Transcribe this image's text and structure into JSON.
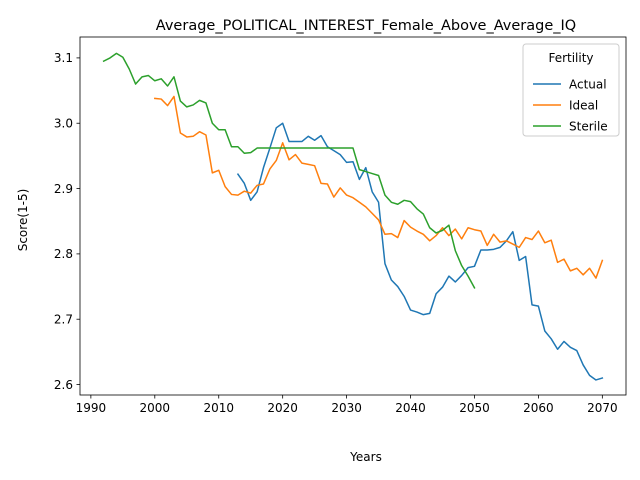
{
  "chart_data": {
    "type": "line",
    "title": "Average_POLITICAL_INTEREST_Female_Above_Average_IQ",
    "xlabel": "Years",
    "ylabel": "Score(1-5)",
    "xlim": [
      1988.3,
      2073.7
    ],
    "ylim": [
      2.584,
      3.132
    ],
    "xticks": [
      1990,
      2000,
      2010,
      2020,
      2030,
      2040,
      2050,
      2060,
      2070
    ],
    "yticks": [
      2.6,
      2.7,
      2.8,
      2.9,
      3.0,
      3.1
    ],
    "ytick_labels": [
      "2.6",
      "2.7",
      "2.8",
      "2.9",
      "3.0",
      "3.1"
    ],
    "grid": false,
    "legend": {
      "title": "Fertility",
      "placement": "top-right"
    },
    "series": [
      {
        "name": "Actual",
        "color": "#1f77b4",
        "x": [
          2013,
          2014,
          2015,
          2016,
          2017,
          2018,
          2019,
          2020,
          2021,
          2022,
          2023,
          2024,
          2025,
          2026,
          2027,
          2028,
          2029,
          2030,
          2031,
          2032,
          2033,
          2034,
          2035,
          2036,
          2037,
          2038,
          2039,
          2040,
          2041,
          2042,
          2043,
          2044,
          2045,
          2046,
          2047,
          2048,
          2049,
          2050,
          2051,
          2052,
          2053,
          2054,
          2055,
          2056,
          2057,
          2058,
          2059,
          2060,
          2061,
          2062,
          2063,
          2064,
          2065,
          2066,
          2067,
          2068,
          2069,
          2070
        ],
        "y": [
          2.922,
          2.908,
          2.882,
          2.895,
          2.932,
          2.962,
          2.993,
          3.0,
          2.972,
          2.972,
          2.972,
          2.98,
          2.974,
          2.981,
          2.964,
          2.958,
          2.952,
          2.94,
          2.941,
          2.914,
          2.932,
          2.895,
          2.879,
          2.785,
          2.76,
          2.75,
          2.735,
          2.714,
          2.711,
          2.707,
          2.709,
          2.739,
          2.749,
          2.766,
          2.757,
          2.767,
          2.779,
          2.781,
          2.806,
          2.806,
          2.807,
          2.81,
          2.82,
          2.834,
          2.79,
          2.796,
          2.722,
          2.72,
          2.682,
          2.67,
          2.654,
          2.666,
          2.657,
          2.652,
          2.63,
          2.614,
          2.607,
          2.61
        ]
      },
      {
        "name": "Ideal",
        "color": "#ff7f0e",
        "x": [
          2000,
          2001,
          2002,
          2003,
          2004,
          2005,
          2006,
          2007,
          2008,
          2009,
          2010,
          2011,
          2012,
          2013,
          2014,
          2015,
          2016,
          2017,
          2018,
          2019,
          2020,
          2021,
          2022,
          2023,
          2024,
          2025,
          2026,
          2027,
          2028,
          2029,
          2030,
          2031,
          2032,
          2033,
          2034,
          2035,
          2036,
          2037,
          2038,
          2039,
          2040,
          2041,
          2042,
          2043,
          2044,
          2045,
          2046,
          2047,
          2048,
          2049,
          2050,
          2051,
          2052,
          2053,
          2054,
          2055,
          2056,
          2057,
          2058,
          2059,
          2060,
          2061,
          2062,
          2063,
          2064,
          2065,
          2066,
          2067,
          2068,
          2069,
          2070
        ],
        "y": [
          3.038,
          3.037,
          3.027,
          3.041,
          2.985,
          2.979,
          2.98,
          2.987,
          2.982,
          2.924,
          2.928,
          2.903,
          2.891,
          2.89,
          2.896,
          2.893,
          2.905,
          2.907,
          2.93,
          2.943,
          2.97,
          2.944,
          2.952,
          2.939,
          2.937,
          2.935,
          2.908,
          2.907,
          2.887,
          2.901,
          2.89,
          2.886,
          2.879,
          2.872,
          2.862,
          2.852,
          2.83,
          2.831,
          2.825,
          2.851,
          2.841,
          2.835,
          2.83,
          2.82,
          2.828,
          2.84,
          2.828,
          2.838,
          2.823,
          2.84,
          2.837,
          2.835,
          2.813,
          2.83,
          2.818,
          2.82,
          2.815,
          2.81,
          2.825,
          2.822,
          2.835,
          2.817,
          2.821,
          2.787,
          2.792,
          2.774,
          2.778,
          2.768,
          2.778,
          2.763,
          2.79
        ]
      },
      {
        "name": "Sterile",
        "color": "#2ca02c",
        "x": [
          1992,
          1993,
          1994,
          1995,
          1996,
          1997,
          1998,
          1999,
          2000,
          2001,
          2002,
          2003,
          2004,
          2005,
          2006,
          2007,
          2008,
          2009,
          2010,
          2011,
          2012,
          2013,
          2014,
          2015,
          2016,
          2017,
          2018,
          2019,
          2020,
          2021,
          2022,
          2023,
          2024,
          2025,
          2026,
          2027,
          2028,
          2029,
          2030,
          2031,
          2032,
          2033,
          2034,
          2035,
          2036,
          2037,
          2038,
          2039,
          2040,
          2041,
          2042,
          2043,
          2044,
          2045,
          2046,
          2047,
          2048,
          2049,
          2050
        ],
        "y": [
          3.095,
          3.1,
          3.107,
          3.101,
          3.083,
          3.06,
          3.071,
          3.073,
          3.065,
          3.068,
          3.057,
          3.071,
          3.034,
          3.025,
          3.028,
          3.035,
          3.031,
          3.0,
          2.99,
          2.99,
          2.964,
          2.964,
          2.954,
          2.955,
          2.962,
          2.962,
          2.962,
          2.962,
          2.962,
          2.962,
          2.962,
          2.962,
          2.962,
          2.962,
          2.962,
          2.962,
          2.962,
          2.962,
          2.962,
          2.962,
          2.929,
          2.926,
          2.923,
          2.92,
          2.89,
          2.879,
          2.876,
          2.882,
          2.88,
          2.869,
          2.861,
          2.84,
          2.832,
          2.836,
          2.844,
          2.805,
          2.782,
          2.766,
          2.748
        ]
      }
    ]
  }
}
